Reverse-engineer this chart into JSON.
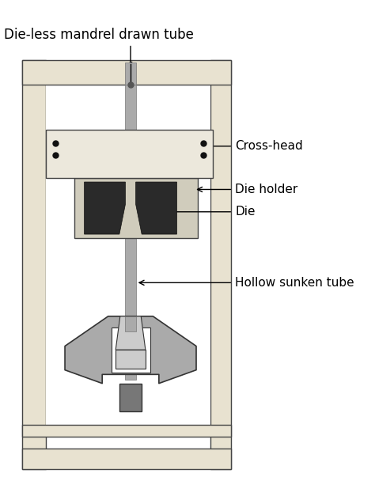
{
  "bg_color": "#ffffff",
  "frame_bg": "#f5f2ea",
  "col_color": "#e8e2d0",
  "col_edge": "#444444",
  "crosshead_color": "#ece8dc",
  "crosshead_edge": "#444444",
  "die_holder_color": "#d0ccbc",
  "die_holder_edge": "#444444",
  "die_color": "#2a2a2a",
  "die_edge": "#111111",
  "tube_color": "#aaaaaa",
  "tube_dark": "#666666",
  "tube_edge": "#777777",
  "mandrel_color": "#555555",
  "grip_outer_color": "#aaaaaa",
  "grip_outer_edge": "#333333",
  "grip_inner_color": "#cccccc",
  "grip_white": "#ffffff",
  "grip_stem_color": "#777777",
  "dot_color": "#111111",
  "line_color": "#000000",
  "title": "Die-less mandrel drawn tube",
  "label_crosshead": "Cross-head",
  "label_die_holder": "Die holder",
  "label_die": "Die",
  "label_hollow": "Hollow sunken tube",
  "title_fontsize": 12,
  "label_fontsize": 11
}
